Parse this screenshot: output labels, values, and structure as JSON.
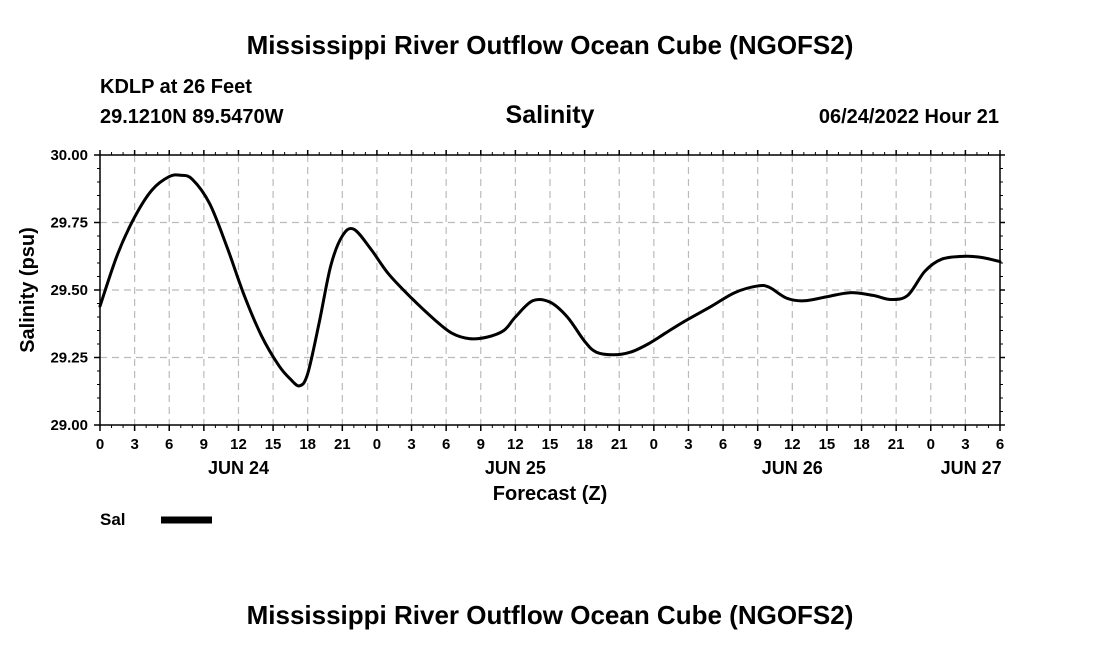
{
  "header": {
    "title": "Mississippi River Outflow Ocean Cube (NGOFS2)",
    "station": "KDLP at 26 Feet",
    "coords": "29.1210N  89.5470W",
    "variable": "Salinity",
    "datetime": "06/24/2022 Hour 21"
  },
  "footer": {
    "title": "Mississippi River Outflow Ocean Cube (NGOFS2)"
  },
  "colors": {
    "line": "#000000",
    "grid": "#bbbbbb"
  },
  "chart_data": {
    "type": "line",
    "title": "Salinity",
    "xlabel": "Forecast (Z)",
    "ylabel": "Salinity (psu)",
    "xlim": [
      0,
      78
    ],
    "ylim": [
      29.0,
      30.0
    ],
    "grid": true,
    "x_ticks": [
      0,
      3,
      6,
      9,
      12,
      15,
      18,
      21,
      24,
      27,
      30,
      33,
      36,
      39,
      42,
      45,
      48,
      51,
      54,
      57,
      60,
      63,
      66,
      69,
      72,
      75,
      78
    ],
    "x_tick_labels": [
      "0",
      "3",
      "6",
      "9",
      "12",
      "15",
      "18",
      "21",
      "0",
      "3",
      "6",
      "9",
      "12",
      "15",
      "18",
      "21",
      "0",
      "3",
      "6",
      "9",
      "12",
      "15",
      "18",
      "21",
      "0",
      "3",
      "6"
    ],
    "y_ticks": [
      29.0,
      29.25,
      29.5,
      29.75,
      30.0
    ],
    "y_tick_labels": [
      "29.00",
      "29.25",
      "29.50",
      "29.75",
      "30.00"
    ],
    "day_labels": [
      {
        "label": "JUN 24",
        "x": 12
      },
      {
        "label": "JUN 25",
        "x": 36
      },
      {
        "label": "JUN 26",
        "x": 60
      },
      {
        "label": "JUN 27",
        "x": 75.5
      }
    ],
    "series": [
      {
        "name": "Sal",
        "x": [
          0,
          1.5,
          3,
          4.5,
          6,
          7,
          8,
          9.5,
          11,
          12.5,
          14,
          15.5,
          16.5,
          17.3,
          18,
          19,
          20,
          21,
          22,
          23.5,
          25,
          27,
          29,
          30.5,
          32,
          33.5,
          35,
          36,
          37.5,
          39,
          40.5,
          42,
          43,
          44.5,
          46,
          47.5,
          49,
          50.5,
          53,
          55,
          57,
          58,
          59.5,
          61,
          63,
          65,
          67,
          68.5,
          70,
          71.5,
          73,
          75,
          76.5,
          78
        ],
        "values": [
          29.44,
          29.63,
          29.77,
          29.87,
          29.92,
          29.925,
          29.91,
          29.82,
          29.66,
          29.48,
          29.33,
          29.22,
          29.17,
          29.145,
          29.19,
          29.38,
          29.59,
          29.7,
          29.725,
          29.65,
          29.56,
          29.47,
          29.39,
          29.34,
          29.32,
          29.325,
          29.35,
          29.4,
          29.46,
          29.455,
          29.4,
          29.31,
          29.27,
          29.26,
          29.27,
          29.3,
          29.34,
          29.38,
          29.44,
          29.49,
          29.515,
          29.51,
          29.47,
          29.46,
          29.475,
          29.49,
          29.48,
          29.465,
          29.48,
          29.57,
          29.615,
          29.625,
          29.62,
          29.605
        ]
      }
    ],
    "legend": [
      {
        "label": "Sal"
      }
    ]
  }
}
